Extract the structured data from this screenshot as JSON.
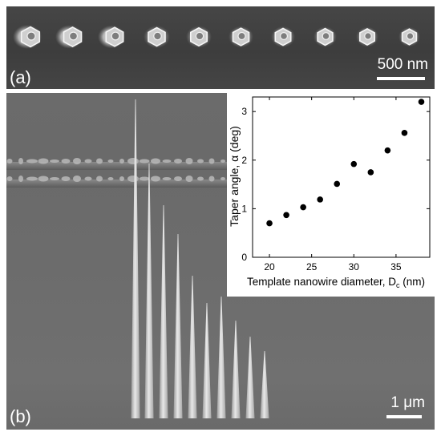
{
  "figure": {
    "panel_a": {
      "label": "(a)",
      "scale_bar_label": "500 nm"
    },
    "panel_b": {
      "label": "(b)",
      "scale_bar_label": "1 μm"
    }
  },
  "chart_data": {
    "type": "scatter",
    "xlabel": "Template nanowire diameter, D",
    "xlabel_sub": "c",
    "xlabel_unit": " (nm)",
    "ylabel": "Taper angle, α  (deg)",
    "xlim": [
      18,
      39
    ],
    "ylim": [
      0,
      3.3
    ],
    "xticks": [
      "20",
      "25",
      "30",
      "35"
    ],
    "yticks": [
      "0",
      "1",
      "2",
      "3"
    ],
    "series": [
      {
        "x": [
          20,
          22,
          24,
          26,
          28,
          30,
          32,
          34,
          36,
          38
        ],
        "y": [
          0.7,
          0.87,
          1.03,
          1.19,
          1.51,
          1.92,
          1.75,
          2.2,
          2.56,
          3.2
        ]
      }
    ],
    "marker_color": "#000000"
  }
}
